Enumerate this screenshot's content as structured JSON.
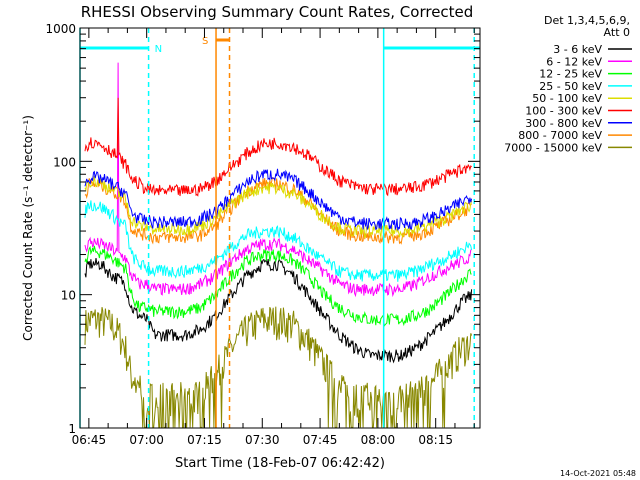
{
  "chart_data": {
    "type": "line",
    "title": "RHESSI Observing Summary Count Rates, Corrected",
    "xlabel": "Start Time (18-Feb-07 06:42:42)",
    "ylabel": "Corrected Count Rate (s⁻¹ detector⁻¹)",
    "yscale": "log",
    "ylim": [
      1,
      1000
    ],
    "xlim_minutes": [
      42.7,
      146.5
    ],
    "x_ticks": [
      {
        "label": "06:45",
        "min": 45
      },
      {
        "label": "07:00",
        "min": 60
      },
      {
        "label": "07:15",
        "min": 75
      },
      {
        "label": "07:30",
        "min": 90
      },
      {
        "label": "07:45",
        "min": 105
      },
      {
        "label": "08:00",
        "min": 120
      },
      {
        "label": "08:15",
        "min": 135
      }
    ],
    "y_ticks": [
      {
        "label": "1",
        "v": 1
      },
      {
        "label": "10",
        "v": 10
      },
      {
        "label": "100",
        "v": 100
      },
      {
        "label": "1000",
        "v": 1000
      }
    ],
    "legend_header": [
      "Det 1,3,4,5,6,9,",
      "Att 0"
    ],
    "legend_position": "right",
    "timestamp": "14-Oct-2021 05:48",
    "flags": [
      {
        "label": "N",
        "color": "#00ffff",
        "intervals": [
          [
            42.7,
            60.5
          ],
          [
            121.5,
            146.5
          ]
        ]
      },
      {
        "label": "S",
        "color": "#ff8800",
        "intervals": [
          [
            78.0,
            81.5
          ]
        ]
      }
    ],
    "vertical_lines": [
      {
        "min": 42.7,
        "color": "#00ffff",
        "style": "solid"
      },
      {
        "min": 60.5,
        "color": "#00ffff",
        "style": "dashed"
      },
      {
        "min": 78.0,
        "color": "#ff8800",
        "style": "solid"
      },
      {
        "min": 81.5,
        "color": "#ff8800",
        "style": "dashed"
      },
      {
        "min": 121.5,
        "color": "#00ffff",
        "style": "solid"
      },
      {
        "min": 145.0,
        "color": "#00ffff",
        "style": "dashed"
      }
    ],
    "x_minutes": [
      44,
      45,
      48,
      51,
      53,
      54.5,
      56,
      58,
      60,
      62,
      66,
      70,
      74,
      78,
      82,
      86,
      90,
      94,
      98,
      102,
      106,
      110,
      114,
      118,
      122,
      126,
      130,
      134,
      138,
      142,
      144.5
    ],
    "series": [
      {
        "name": "3 - 6 keV",
        "color": "#000000",
        "values": [
          14,
          17,
          17,
          14,
          13,
          12,
          8,
          7,
          6.5,
          5,
          5,
          5,
          5.5,
          7,
          10,
          14,
          17,
          17,
          14,
          10,
          7,
          5,
          4,
          3.5,
          3.5,
          3.5,
          4,
          5,
          6.5,
          9,
          10
        ]
      },
      {
        "name": "6 - 12 keV",
        "color": "#ff00ff",
        "values": [
          22,
          25,
          24,
          22,
          20,
          19,
          14,
          12,
          12,
          11,
          11,
          11,
          12,
          14,
          18,
          22,
          24,
          24,
          22,
          18,
          15,
          12,
          11,
          11,
          11,
          11,
          12,
          14,
          16,
          18,
          20
        ]
      },
      {
        "name": "12 - 25 keV",
        "color": "#00ff00",
        "values": [
          18,
          21,
          21,
          19,
          17,
          16,
          10,
          8,
          8,
          7.5,
          7.5,
          7.5,
          8,
          10,
          14,
          18,
          20,
          20,
          18,
          14,
          10,
          8,
          7,
          6.5,
          6.5,
          6.5,
          7,
          8,
          10,
          13,
          15
        ]
      },
      {
        "name": "25 - 50 keV",
        "color": "#00ffff",
        "values": [
          42,
          48,
          46,
          40,
          35,
          33,
          20,
          17,
          16,
          15,
          15,
          15,
          16,
          18,
          23,
          28,
          30,
          30,
          27,
          22,
          18,
          15,
          14,
          14,
          14,
          14,
          15,
          17,
          19,
          22,
          24
        ]
      },
      {
        "name": "50 - 100 keV",
        "color": "#dddd00",
        "values": [
          65,
          72,
          70,
          62,
          56,
          52,
          37,
          33,
          32,
          31,
          31,
          31,
          33,
          38,
          48,
          58,
          64,
          63,
          58,
          48,
          38,
          32,
          30,
          30,
          30,
          30,
          31,
          34,
          38,
          44,
          48
        ]
      },
      {
        "name": "100 - 300 keV",
        "color": "#ff0000",
        "values": [
          125,
          140,
          135,
          118,
          105,
          95,
          75,
          68,
          62,
          60,
          60,
          60,
          62,
          72,
          92,
          115,
          135,
          138,
          130,
          110,
          88,
          72,
          65,
          62,
          62,
          62,
          64,
          70,
          78,
          88,
          92
        ]
      },
      {
        "name": "300 - 800 keV",
        "color": "#0000ff",
        "values": [
          68,
          76,
          75,
          68,
          62,
          58,
          42,
          37,
          36,
          35,
          35,
          35,
          37,
          42,
          55,
          70,
          80,
          80,
          73,
          60,
          47,
          38,
          35,
          34,
          34,
          34,
          35,
          38,
          43,
          50,
          56
        ]
      },
      {
        "name": "800 - 7000 keV",
        "color": "#ff8800",
        "values": [
          55,
          68,
          66,
          60,
          55,
          50,
          32,
          29,
          28,
          27,
          27,
          27,
          28,
          33,
          45,
          60,
          68,
          68,
          62,
          50,
          38,
          30,
          28,
          27,
          27,
          27,
          28,
          31,
          36,
          42,
          46
        ]
      },
      {
        "name": "7000 - 15000 keV",
        "color": "#888800",
        "values": [
          6,
          6.5,
          6.5,
          6,
          5,
          4,
          2.5,
          2,
          1.7,
          1.7,
          1.7,
          1.7,
          1.8,
          2.5,
          4,
          5.5,
          6.5,
          6.5,
          6,
          4.5,
          3,
          2,
          1.7,
          1.7,
          1.7,
          1.7,
          1.8,
          2.2,
          3,
          4,
          4.5
        ]
      }
    ],
    "spike": {
      "min": 52.5,
      "values": {
        "6 - 12 keV": 550,
        "100 - 300 keV": 300
      }
    }
  }
}
